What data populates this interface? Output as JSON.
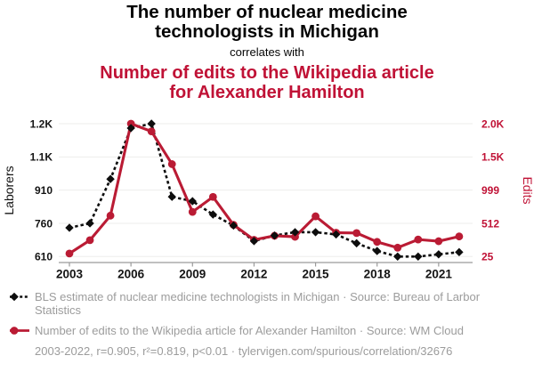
{
  "header": {
    "title_primary": "The number of nuclear medicine technologists in Michigan",
    "connector": "correlates with",
    "title_secondary": "Number of edits to the Wikipedia article for Alexander Hamilton"
  },
  "colors": {
    "accent_red": "#C01236",
    "series_red": "#BA1B34",
    "series_black": "#0D0D0D",
    "legend_gray": "#9C9C9C",
    "gridline_gray": "#EDEDEB",
    "axis_gray": "#9A9A9A"
  },
  "chart_data": {
    "type": "line",
    "x": [
      2003,
      2004,
      2005,
      2006,
      2007,
      2008,
      2009,
      2010,
      2011,
      2012,
      2013,
      2014,
      2015,
      2016,
      2017,
      2018,
      2019,
      2020,
      2021,
      2022
    ],
    "x_ticks": [
      2003,
      2006,
      2009,
      2012,
      2015,
      2018,
      2021
    ],
    "grid": true,
    "legend_position": "below",
    "left_axis": {
      "label": "Laborers",
      "range": [
        610,
        1210
      ],
      "ticks": [
        610,
        760,
        910,
        1060,
        1210
      ],
      "tick_labels": [
        "610",
        "760",
        "910",
        "1.1K",
        "1.2K"
      ]
    },
    "right_axis": {
      "label": "Edits",
      "range": [
        25,
        1973
      ],
      "ticks": [
        25,
        512,
        999,
        1486,
        1973
      ],
      "tick_labels": [
        "25",
        "512",
        "999",
        "1.5K",
        "2.0K"
      ]
    },
    "series": [
      {
        "name": "BLS estimate of nuclear medicine technologists in Michigan",
        "axis": "left",
        "color": "#0D0D0D",
        "line_style": "dashed",
        "marker": "diamond",
        "values": [
          740,
          760,
          960,
          1190,
          1210,
          880,
          860,
          800,
          750,
          680,
          705,
          720,
          720,
          710,
          670,
          635,
          610,
          610,
          620,
          630
        ]
      },
      {
        "name": "Number of edits to the Wikipedia article for Alexander Hamilton",
        "axis": "right",
        "color": "#BA1B34",
        "line_style": "solid",
        "marker": "circle",
        "values": [
          70,
          265,
          625,
          1973,
          1860,
          1380,
          680,
          900,
          490,
          270,
          330,
          315,
          615,
          375,
          370,
          240,
          155,
          275,
          250,
          320
        ]
      }
    ]
  },
  "legend": {
    "series1_label": "BLS estimate of nuclear medicine technologists in Michigan · Source: Bureau of Larbor Statistics",
    "series2_label": "Number of edits to the Wikipedia article for Alexander Hamilton · Source: WM Cloud",
    "footnote": "2003-2022, r=0.905, r²=0.819, p<0.01 · tylervigen.com/spurious/correlation/32676"
  }
}
